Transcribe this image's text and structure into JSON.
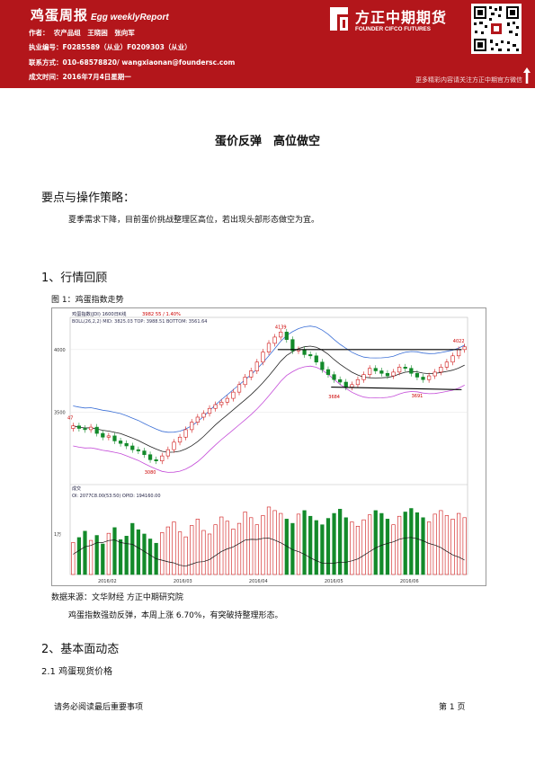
{
  "header": {
    "title_cn": "鸡蛋周报",
    "title_en": "Egg weeklyReport",
    "authors_label": "作者：",
    "authors": "农产品组　王晓困　张向军",
    "license_label": "执业编号：",
    "license": "F0285589（从业）F0209303（从业）",
    "contact_label": "联系方式：",
    "contact": "010-68578820/ wangxiaonan@foundersc.com",
    "date_label": "成文时间：",
    "date": "2016年7月4日星期一",
    "logo_cn": "方正中期期货",
    "logo_en": "FOUNDER CIFCO FUTURES",
    "follow_text": "更多精彩内容请关注方正中期官方微信"
  },
  "doc_title": "蛋价反弹　高位做空",
  "section1": {
    "heading": "要点与操作策略：",
    "text": "夏季需求下降，目前蛋价挑战整理区高位，若出现头部形态做空为宜。"
  },
  "section2": {
    "heading": "1、行情回顾",
    "figure_caption": "图 1：鸡蛋指数走势",
    "source": "数据来源：文华财经  方正中期研究院",
    "text": "鸡蛋指数强劲反弹，本周上涨 6.70%，有突破持整理形态。"
  },
  "section3": {
    "heading": "2、基本面动态",
    "sub_heading": "2.1 鸡蛋现货价格"
  },
  "footer": {
    "notice": "请务必阅读最后重要事项",
    "page": "第 1 页"
  },
  "chart_data": {
    "type": "candlestick",
    "title": "鸡蛋指数(JDI) 1600日K线",
    "indicator_line": "BOLL(26,2,2)  MID: 3825.03  TOP: 3988.51  BOTTOM: 3561.64",
    "header_values": "3982  55 / 1.40%",
    "volume_title": "成交",
    "volume_line": "OI: 2077C8.00(53:50)   OPID: 194160.00",
    "y_ticks": [
      "4000",
      "3500"
    ],
    "volume_tick": "1万",
    "x_ticks": [
      "2016/02",
      "2016/03",
      "2016/04",
      "2016/05",
      "2016/06"
    ],
    "annotations": [
      "4139",
      "3684",
      "3691",
      "3080",
      "4022",
      "47"
    ],
    "price_range": [
      3000,
      4200
    ],
    "closes": [
      3390,
      3370,
      3360,
      3380,
      3330,
      3300,
      3310,
      3270,
      3250,
      3230,
      3200,
      3190,
      3160,
      3120,
      3110,
      3150,
      3200,
      3260,
      3300,
      3360,
      3420,
      3460,
      3490,
      3530,
      3560,
      3580,
      3610,
      3660,
      3720,
      3780,
      3830,
      3900,
      3980,
      4050,
      4100,
      4140,
      4080,
      3990,
      4000,
      3960,
      3950,
      3900,
      3840,
      3800,
      3760,
      3740,
      3700,
      3720,
      3760,
      3800,
      3850,
      3830,
      3810,
      3790,
      3820,
      3860,
      3850,
      3810,
      3780,
      3760,
      3790,
      3820,
      3860,
      3900,
      3950,
      4000,
      4022
    ],
    "resistance": 4000,
    "support": 3700,
    "volumes": [
      0.45,
      0.52,
      0.61,
      0.48,
      0.55,
      0.43,
      0.58,
      0.66,
      0.49,
      0.54,
      0.72,
      0.63,
      0.57,
      0.5,
      0.44,
      0.59,
      0.67,
      0.74,
      0.6,
      0.53,
      0.69,
      0.78,
      0.62,
      0.57,
      0.7,
      0.81,
      0.75,
      0.64,
      0.72,
      0.88,
      0.8,
      0.7,
      0.83,
      0.95,
      0.9,
      0.86,
      0.78,
      0.72,
      0.85,
      0.9,
      0.82,
      0.76,
      0.7,
      0.79,
      0.86,
      0.92,
      0.8,
      0.74,
      0.68,
      0.77,
      0.84,
      0.9,
      0.86,
      0.78,
      0.7,
      0.82,
      0.88,
      0.93,
      0.87,
      0.8,
      0.74,
      0.85,
      0.9,
      0.83,
      0.78,
      0.86,
      0.8
    ]
  }
}
